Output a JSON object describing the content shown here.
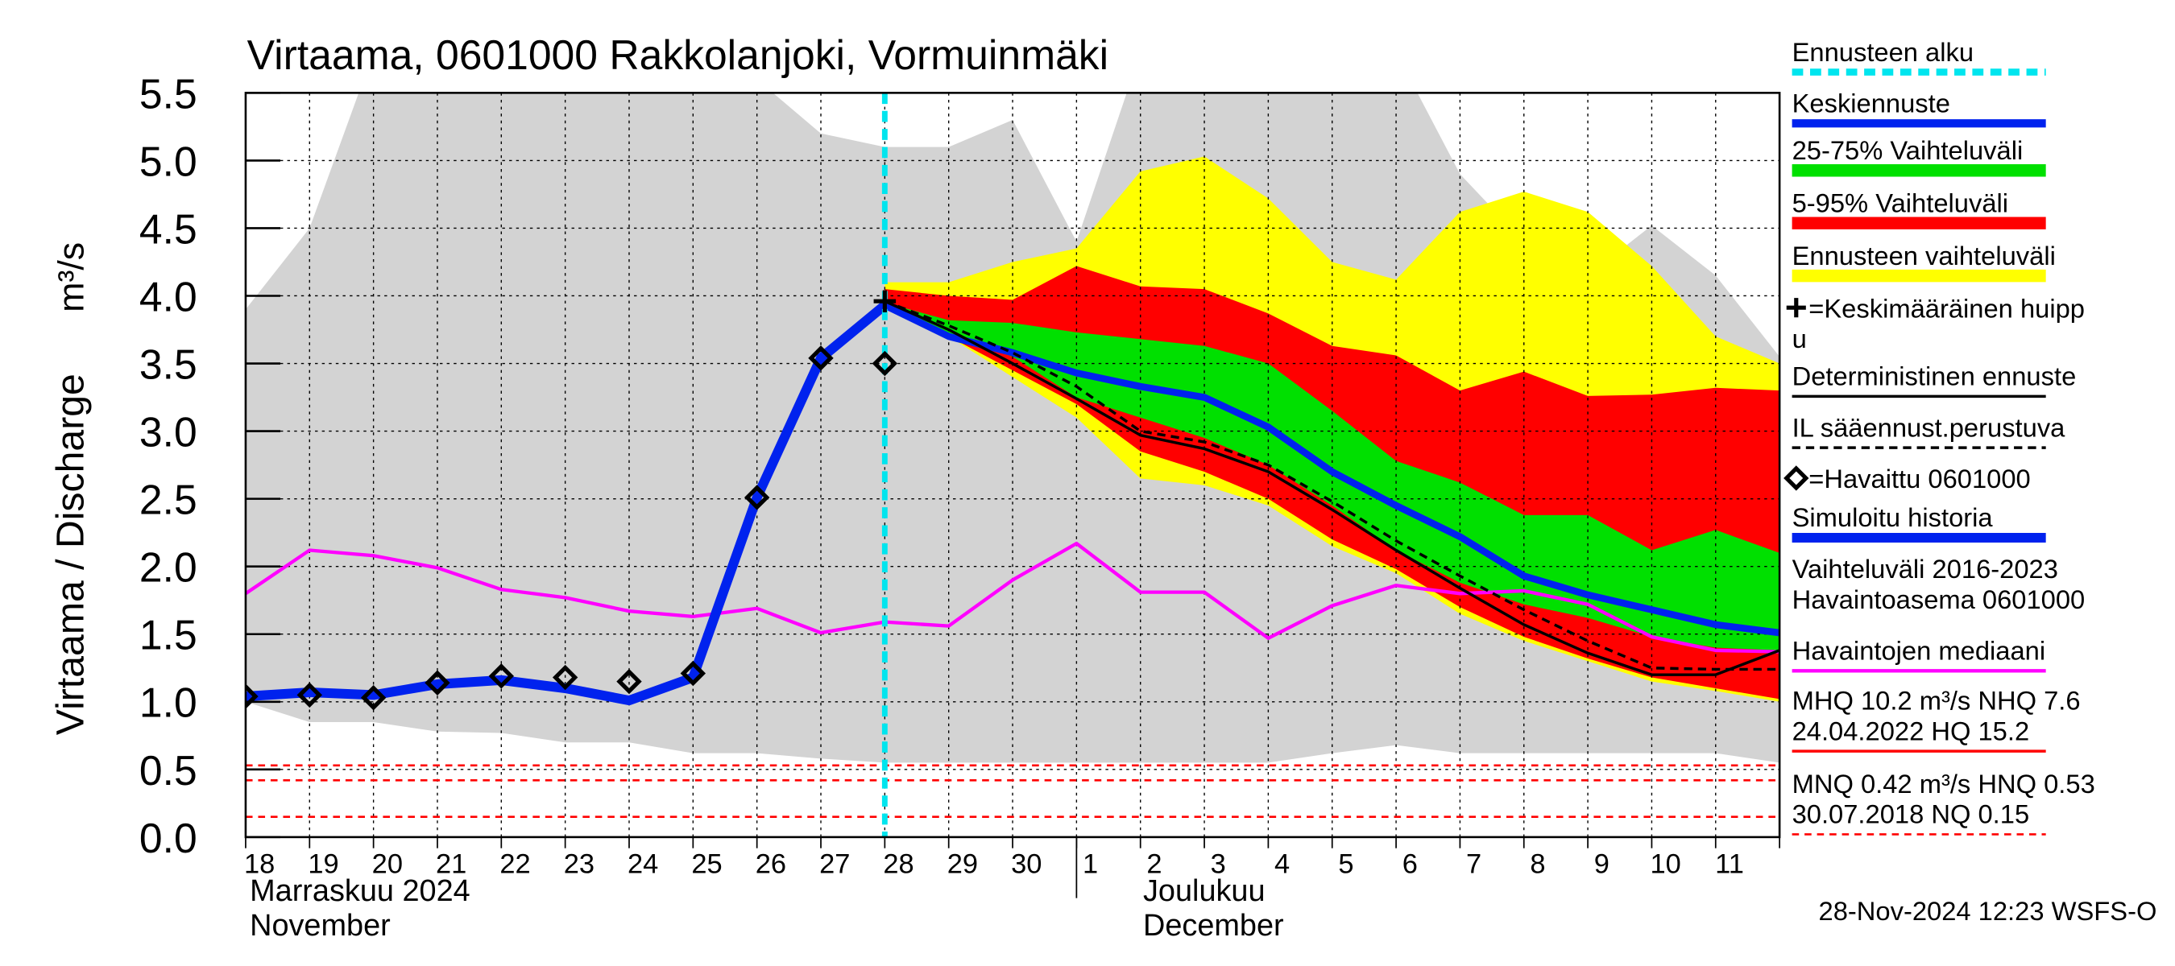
{
  "chart_data": {
    "type": "line",
    "title": "Virtaama, 0601000 Rakkolanjoki, Vormuinmäki",
    "y_label": "Virtaama / Discharge",
    "y_unit": "m³/s",
    "categories": [
      "18",
      "19",
      "20",
      "21",
      "22",
      "23",
      "24",
      "25",
      "26",
      "27",
      "28",
      "29",
      "30",
      "1",
      "2",
      "3",
      "4",
      "5",
      "6",
      "7",
      "8",
      "9",
      "10",
      "11",
      null
    ],
    "months": [
      [
        "Marraskuu 2024",
        "November"
      ],
      [
        "Joulukuu",
        "December"
      ]
    ],
    "ylim": [
      0,
      5.5
    ],
    "yticks": [
      {
        "value": 0,
        "label": "0.0"
      },
      0.5,
      {
        "value": 1,
        "label": "1.0"
      },
      1.5,
      {
        "value": 2,
        "label": "2.0"
      },
      2.5,
      {
        "value": 3,
        "label": "3.0"
      },
      3.5,
      {
        "value": 4,
        "label": "4.0"
      },
      4.5,
      {
        "value": 5,
        "label": "5.0"
      },
      5.5
    ],
    "grid": true,
    "forecast_start": {
      "name": "Ennusteen alku",
      "x": 10,
      "color": "#00e5ee"
    },
    "bands": [
      {
        "name": [
          "Vaihteluväli 2016-2023",
          " Havaintoasema 0601000"
        ],
        "color": "#d3d3d3",
        "lower": [
          1.0,
          0.85,
          0.85,
          0.78,
          0.77,
          0.7,
          0.7,
          0.62,
          0.62,
          0.58,
          0.55,
          0.55,
          0.55,
          0.55,
          0.55,
          0.55,
          0.55,
          0.62,
          0.68,
          0.62,
          0.62,
          0.62,
          0.62,
          0.62,
          0.55
        ],
        "upper": [
          3.9,
          4.5,
          5.8,
          5.8,
          5.8,
          5.8,
          5.8,
          5.8,
          5.6,
          5.2,
          5.1,
          5.1,
          5.3,
          4.4,
          5.8,
          5.8,
          5.8,
          5.8,
          5.8,
          4.9,
          4.4,
          4.15,
          4.52,
          4.15,
          3.55
        ]
      },
      {
        "name": "Ennusteen vaihteluväli",
        "color": "#ffff00",
        "lower": [
          null,
          null,
          null,
          null,
          null,
          null,
          null,
          null,
          null,
          null,
          3.95,
          3.7,
          3.4,
          3.1,
          2.65,
          2.6,
          2.45,
          2.15,
          1.95,
          1.65,
          1.45,
          1.3,
          1.15,
          1.08,
          1.0
        ],
        "upper": [
          null,
          null,
          null,
          null,
          null,
          null,
          null,
          null,
          null,
          null,
          4.1,
          4.1,
          4.25,
          4.35,
          4.92,
          5.03,
          4.72,
          4.25,
          4.12,
          4.62,
          4.77,
          4.62,
          4.22,
          3.7,
          3.5
        ]
      },
      {
        "name": "5-95% Vaihteluväli",
        "color": "#ff0000",
        "lower": [
          null,
          null,
          null,
          null,
          null,
          null,
          null,
          null,
          null,
          null,
          3.93,
          3.7,
          3.45,
          3.2,
          2.85,
          2.7,
          2.5,
          2.2,
          1.98,
          1.7,
          1.48,
          1.32,
          1.18,
          1.1,
          1.02
        ],
        "upper": [
          null,
          null,
          null,
          null,
          null,
          null,
          null,
          null,
          null,
          null,
          4.05,
          4.0,
          3.97,
          4.22,
          4.07,
          4.05,
          3.87,
          3.63,
          3.56,
          3.3,
          3.44,
          3.26,
          3.27,
          3.32,
          3.3
        ]
      },
      {
        "name": "25-75% Vaihteluväli",
        "color": "#00e000",
        "lower": [
          null,
          null,
          null,
          null,
          null,
          null,
          null,
          null,
          null,
          null,
          3.93,
          3.72,
          3.55,
          3.25,
          3.1,
          2.95,
          2.75,
          2.45,
          2.12,
          1.88,
          1.72,
          1.62,
          1.48,
          1.4,
          1.38
        ],
        "upper": [
          null,
          null,
          null,
          null,
          null,
          null,
          null,
          null,
          null,
          null,
          3.95,
          3.82,
          3.8,
          3.73,
          3.68,
          3.63,
          3.5,
          3.15,
          2.78,
          2.62,
          2.38,
          2.38,
          2.12,
          2.27,
          2.1
        ]
      }
    ],
    "series": [
      {
        "name": "Havaintojen mediaani",
        "color": "#ff00ff",
        "values": [
          1.8,
          2.12,
          2.08,
          1.99,
          1.83,
          1.77,
          1.67,
          1.63,
          1.69,
          1.51,
          1.59,
          1.56,
          1.9,
          2.17,
          1.81,
          1.81,
          1.47,
          1.71,
          1.86,
          1.8,
          1.82,
          1.72,
          1.48,
          1.38,
          1.37
        ]
      },
      {
        "name": "Simuloitu historia",
        "color": "#0022ee",
        "values": [
          1.04,
          1.07,
          1.05,
          1.13,
          1.16,
          1.1,
          1.01,
          1.18,
          2.51,
          3.54,
          3.93,
          null,
          null,
          null,
          null,
          null,
          null,
          null,
          null,
          null,
          null,
          null,
          null,
          null,
          null
        ]
      },
      {
        "name": "Keskiennuste",
        "color": "#0022ee",
        "values": [
          null,
          null,
          null,
          null,
          null,
          null,
          null,
          null,
          null,
          null,
          3.93,
          3.7,
          3.58,
          3.43,
          3.33,
          3.25,
          3.03,
          2.7,
          2.45,
          2.22,
          1.93,
          1.79,
          1.68,
          1.57,
          1.51
        ]
      },
      {
        "name": "Deterministinen ennuste",
        "color": "#000000",
        "values": [
          null,
          null,
          null,
          null,
          null,
          null,
          null,
          null,
          null,
          null,
          3.96,
          3.75,
          3.5,
          3.24,
          2.97,
          2.87,
          2.7,
          2.42,
          2.12,
          1.84,
          1.57,
          1.36,
          1.2,
          1.2,
          1.38
        ]
      },
      {
        "name": "IL sääennust.perustuva",
        "color": "#000000",
        "dashed": true,
        "values": [
          null,
          null,
          null,
          null,
          null,
          null,
          null,
          null,
          null,
          null,
          3.96,
          3.78,
          3.58,
          3.33,
          3.0,
          2.92,
          2.75,
          2.48,
          2.19,
          1.93,
          1.68,
          1.45,
          1.25,
          1.24,
          1.24
        ]
      }
    ],
    "observed": {
      "name": "=Havaittu 0601000",
      "values": [
        1.04,
        1.05,
        1.03,
        1.14,
        1.19,
        1.18,
        1.15,
        1.21,
        2.51,
        3.54,
        3.5,
        null,
        null,
        null,
        null,
        null,
        null,
        null,
        null,
        null,
        null,
        null,
        null,
        null,
        null
      ]
    },
    "peak": {
      "name": [
        "=Keskimääräinen huipp",
        "u"
      ],
      "x": 10,
      "y": 3.96
    },
    "reference": [
      {
        "label": [
          "MHQ 10.2 m³/s NHQ  7.6",
          "24.04.2022 HQ 15.2"
        ],
        "color": "#ff0000"
      },
      {
        "label": [
          "MNQ 0.42 m³/s HNQ 0.53",
          "30.07.2018 NQ 0.15"
        ],
        "color": "#ff0000",
        "values": [
          0.53,
          0.42,
          0.15
        ]
      }
    ],
    "footer": "28-Nov-2024 12:23 WSFS-O"
  }
}
